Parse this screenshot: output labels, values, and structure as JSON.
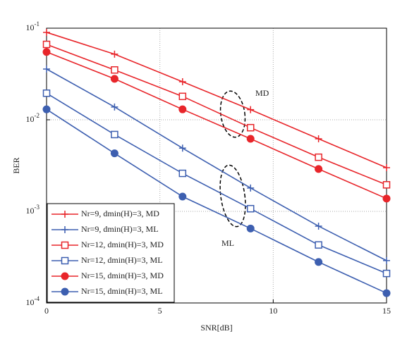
{
  "chart_data": {
    "type": "line",
    "xlabel": "SNR[dB]",
    "ylabel": "BER",
    "x": [
      0,
      3,
      6,
      9,
      12,
      15
    ],
    "xlim": [
      0,
      15
    ],
    "xticks": [
      0,
      5,
      10,
      15
    ],
    "ylim": [
      0.0001,
      0.1
    ],
    "log_y": true,
    "grid": true,
    "yticks": [
      {
        "value": 0.0001,
        "label": "10",
        "sup": "-4"
      },
      {
        "value": 0.001,
        "label": "10",
        "sup": "-3"
      },
      {
        "value": 0.01,
        "label": "10",
        "sup": "-2"
      },
      {
        "value": 0.1,
        "label": "10",
        "sup": "-1"
      }
    ],
    "legend": "lower left",
    "series": [
      {
        "name": "Nr=9, dmin(H)=3, MD",
        "color": "#e8252a",
        "marker": "plus",
        "values": [
          0.09,
          0.052,
          0.026,
          0.0129,
          0.0062,
          0.003
        ]
      },
      {
        "name": "Nr=9, dmin(H)=3, ML",
        "color": "#3d5fb0",
        "marker": "plus",
        "values": [
          0.0358,
          0.0138,
          0.0049,
          0.0018,
          0.00069,
          0.00029
        ]
      },
      {
        "name": "Nr=12, dmin(H)=3, MD",
        "color": "#e8252a",
        "marker": "square",
        "values": [
          0.0665,
          0.035,
          0.018,
          0.0082,
          0.0039,
          0.00195
        ]
      },
      {
        "name": "Nr=12, dmin(H)=3, ML",
        "color": "#3d5fb0",
        "marker": "square",
        "values": [
          0.0195,
          0.0069,
          0.0026,
          0.00107,
          0.00043,
          0.00021
        ]
      },
      {
        "name": "Nr=15, dmin(H)=3, MD",
        "color": "#e8252a",
        "marker": "circle",
        "values": [
          0.055,
          0.028,
          0.013,
          0.0062,
          0.0029,
          0.00138
        ]
      },
      {
        "name": "Nr=15, dmin(H)=3, ML",
        "color": "#3d5fb0",
        "marker": "circle",
        "values": [
          0.013,
          0.0043,
          0.00145,
          0.00065,
          0.00028,
          0.000128
        ]
      }
    ],
    "annotations": [
      "MD",
      "ML"
    ]
  }
}
